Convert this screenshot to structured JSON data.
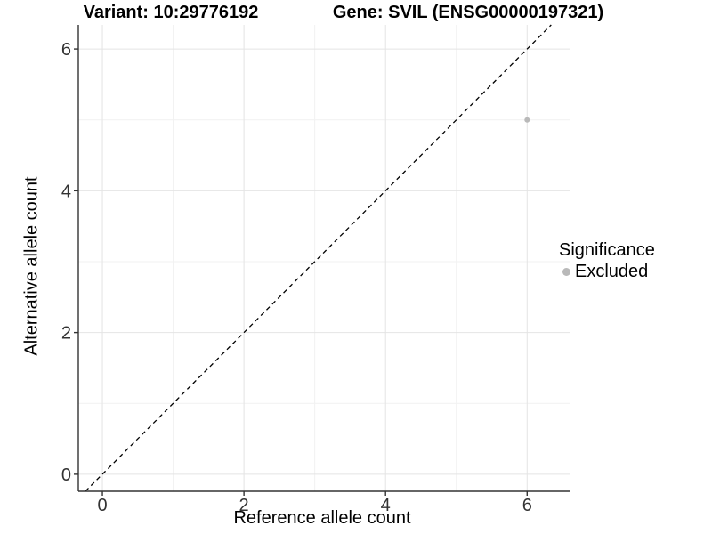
{
  "titles": {
    "variant": "Variant: 10:29776192",
    "gene": "Gene: SVIL (ENSG00000197321)"
  },
  "legend": {
    "title": "Significance",
    "items": [
      {
        "label": "Excluded"
      }
    ]
  },
  "chart_data": {
    "type": "scatter",
    "title": "Variant: 10:29776192 — Gene: SVIL (ENSG00000197321)",
    "xlabel": "Reference allele count",
    "ylabel": "Alternative allele count",
    "xlim": [
      -0.34,
      6.6
    ],
    "ylim": [
      -0.24,
      6.34
    ],
    "x_ticks": [
      0,
      2,
      4,
      6
    ],
    "x_minor_ticks": [
      1,
      3,
      5
    ],
    "y_ticks": [
      0,
      2,
      4,
      6
    ],
    "y_minor_ticks": [
      1,
      3,
      5
    ],
    "grid": "major+minor",
    "legend_position": "right",
    "legend_title": "Significance",
    "series": [
      {
        "name": "Excluded",
        "color": "#b9b9b9",
        "marker": "circle",
        "marker_radius_px": 3,
        "points": [
          {
            "x": 6,
            "y": 5
          }
        ]
      }
    ],
    "annotations": [
      {
        "type": "identity-line",
        "equation": "y = x",
        "line_style": "dashed",
        "color": "#000000"
      }
    ]
  },
  "style": {
    "background": "#ffffff",
    "grid_major_color": "#e4e4e4",
    "grid_minor_color": "#f1f1f1",
    "axis_line_color": "#333333",
    "tick_color": "#333333",
    "tick_label_color": "#333333",
    "title_color": "#000000",
    "dashed_line_color": "#000000"
  }
}
